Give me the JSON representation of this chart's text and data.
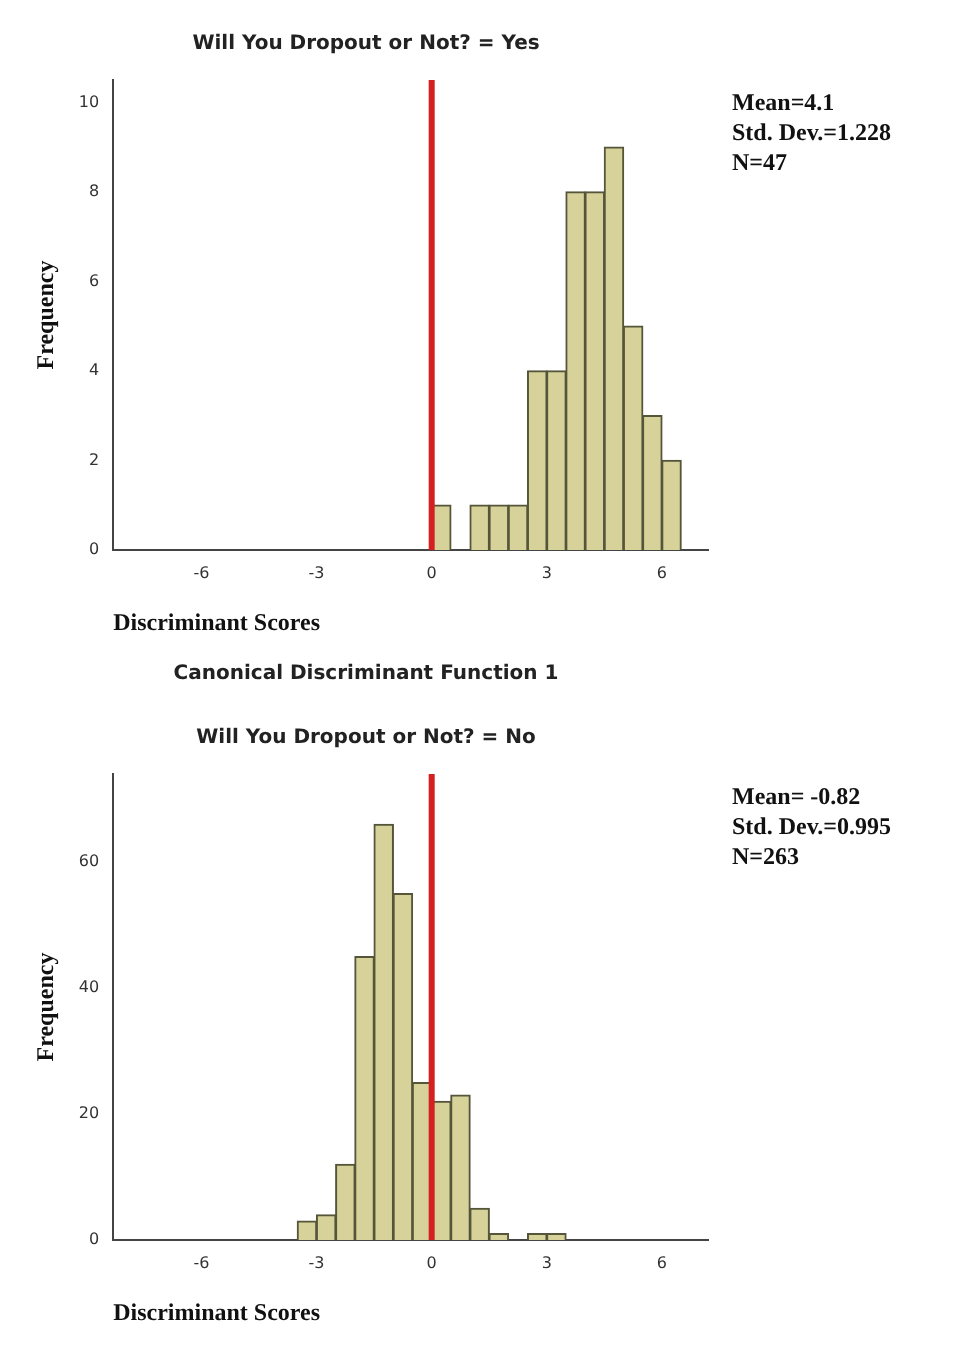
{
  "chart_data": [
    {
      "type": "histogram",
      "title": "Will You Dropout or Not? = Yes",
      "xlabel": "Discriminant Scores",
      "ylabel": "Frequency",
      "bins": [
        0,
        0.5,
        1,
        1.5,
        2,
        2.5,
        3,
        3.5,
        4,
        4.5,
        5,
        5.5,
        6,
        6.5
      ],
      "values": [
        1,
        0,
        1,
        1,
        1,
        4,
        4,
        8,
        8,
        9,
        5,
        3,
        2
      ],
      "color": "#d6d29a",
      "xlim": [
        -8.3,
        7.2
      ],
      "xticks": [
        -6,
        -3,
        0,
        3,
        6
      ],
      "ylim": [
        0,
        10.5
      ],
      "yticks": [
        0,
        2,
        4,
        6,
        8,
        10
      ],
      "ref_lines": [
        {
          "axis": "x",
          "value": 0,
          "color": "#d42020"
        }
      ],
      "annotations": [
        "Mean=4.1",
        "Std. Dev.=1.228",
        "N=47"
      ],
      "grid": false,
      "legend": false
    },
    {
      "type": "histogram",
      "title": "Canonical Discriminant Function 1",
      "subtitle": "Will You Dropout or Not? = No",
      "xlabel": "Discriminant Scores",
      "ylabel": "Frequency",
      "bins": [
        -3.5,
        -3,
        -2.5,
        -2,
        -1.5,
        -1,
        -0.5,
        0,
        0.5,
        1,
        1.5,
        2,
        2.5,
        3,
        3.5
      ],
      "values": [
        3,
        4,
        12,
        45,
        66,
        55,
        25,
        22,
        23,
        5,
        1,
        0,
        1,
        1
      ],
      "color": "#d6d29a",
      "xlim": [
        -8.3,
        7.2
      ],
      "xticks": [
        -6,
        -3,
        0,
        3,
        6
      ],
      "ylim": [
        0,
        74
      ],
      "yticks": [
        0,
        20,
        40,
        60
      ],
      "ref_lines": [
        {
          "axis": "x",
          "value": 0,
          "color": "#d42020"
        }
      ],
      "annotations": [
        "Mean= -0.82",
        "Std. Dev.=0.995",
        "N=263"
      ],
      "grid": false,
      "legend": false
    }
  ]
}
